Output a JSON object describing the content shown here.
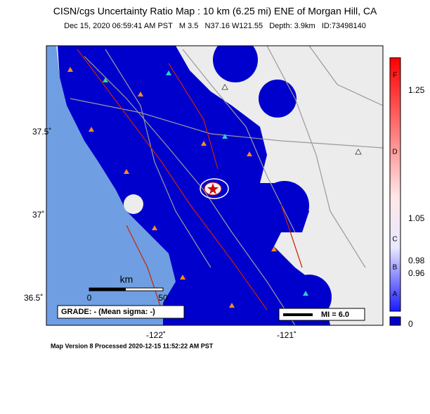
{
  "header": {
    "title": "CISN/cgs Uncertainty Ratio Map : 10 km (6.25 mi) ENE of Morgan Hill, CA",
    "subtitle": "Dec 15, 2020 06:59:41 AM PST   M 3.5   N37.16 W121.55   Depth: 3.9km   ID:73498140"
  },
  "map": {
    "lat_labels": [
      "37.5˚",
      "37˚",
      "36.5˚"
    ],
    "lon_labels": [
      "-122˚",
      "-121˚"
    ],
    "scale": {
      "unit": "km",
      "start": "0",
      "end": "50"
    },
    "grade": "GRADE: - (Mean sigma: -)",
    "mi_label": "MI = 6.0"
  },
  "colorbar": {
    "ticks": [
      "1.25",
      "1.05",
      "0.98",
      "0.96",
      "0"
    ],
    "grades": [
      "F",
      "D",
      "C",
      "B",
      "A"
    ]
  },
  "footer": "Map Version 8 Processed 2020-12-15 11:52:22 AM PST"
}
